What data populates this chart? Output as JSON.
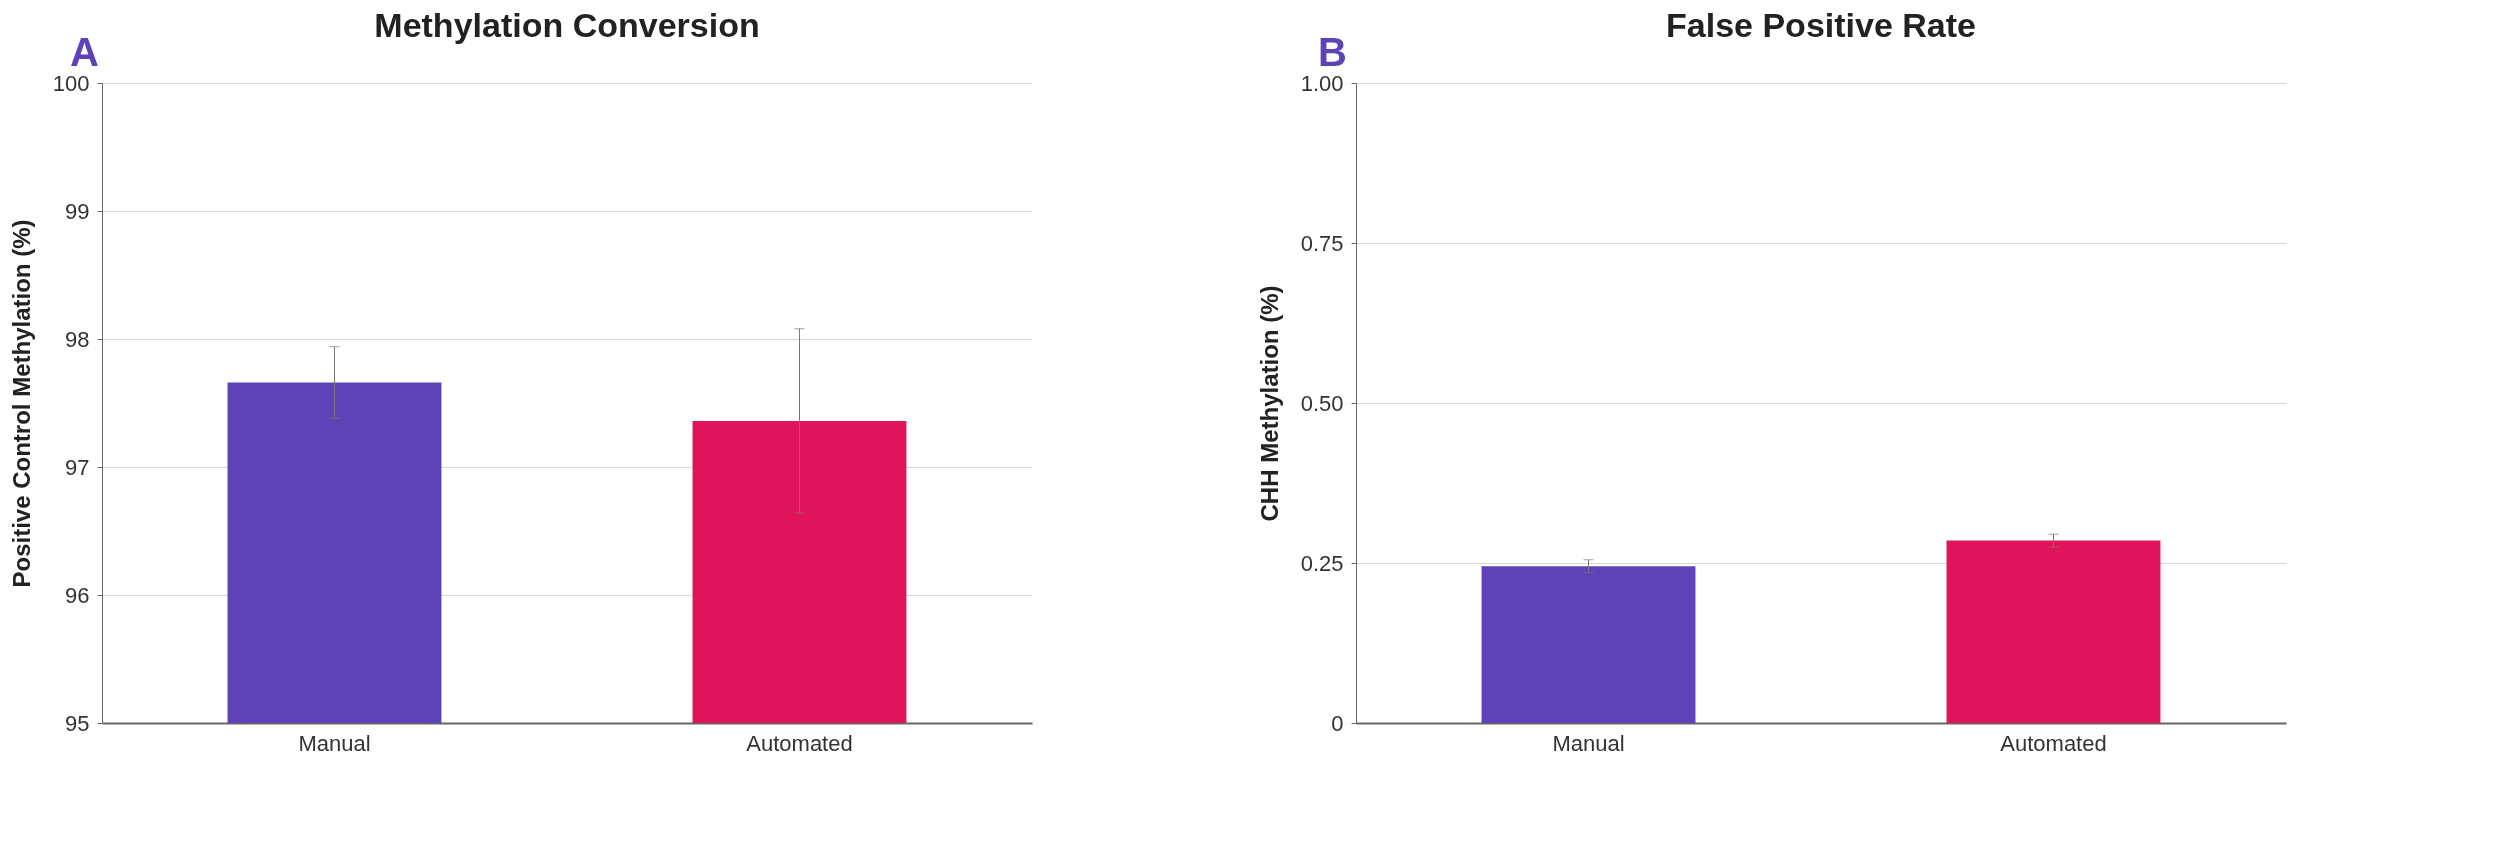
{
  "chart_data": [
    {
      "type": "bar",
      "title": "Methylation Conversion",
      "ylabel": "Positive Control Methylation (%)",
      "annotations": [
        "A"
      ],
      "categories": [
        "Manual",
        "Automated"
      ],
      "values": [
        97.66,
        97.36
      ],
      "errors": [
        0.28,
        0.72
      ],
      "colors": [
        "#5e43b8",
        "#e0145a"
      ],
      "ylim": [
        95,
        100
      ],
      "yticks": [
        95,
        96,
        97,
        98,
        99,
        100
      ],
      "grid": "y",
      "legend": false
    },
    {
      "type": "bar",
      "title": "False Positive Rate",
      "ylabel": "CHH Methylation (%)",
      "annotations": [
        "B"
      ],
      "categories": [
        "Manual",
        "Automated"
      ],
      "values": [
        0.245,
        0.285
      ],
      "errors": [
        0.01,
        0.01
      ],
      "colors": [
        "#5e43b8",
        "#e0145a"
      ],
      "ylim": [
        0,
        1
      ],
      "yticks": [
        0,
        0.25,
        {
          "value": 0.5,
          "label": "0.50"
        },
        0.75,
        {
          "value": 1,
          "label": "1.00"
        }
      ],
      "grid": "y",
      "legend": false
    }
  ]
}
